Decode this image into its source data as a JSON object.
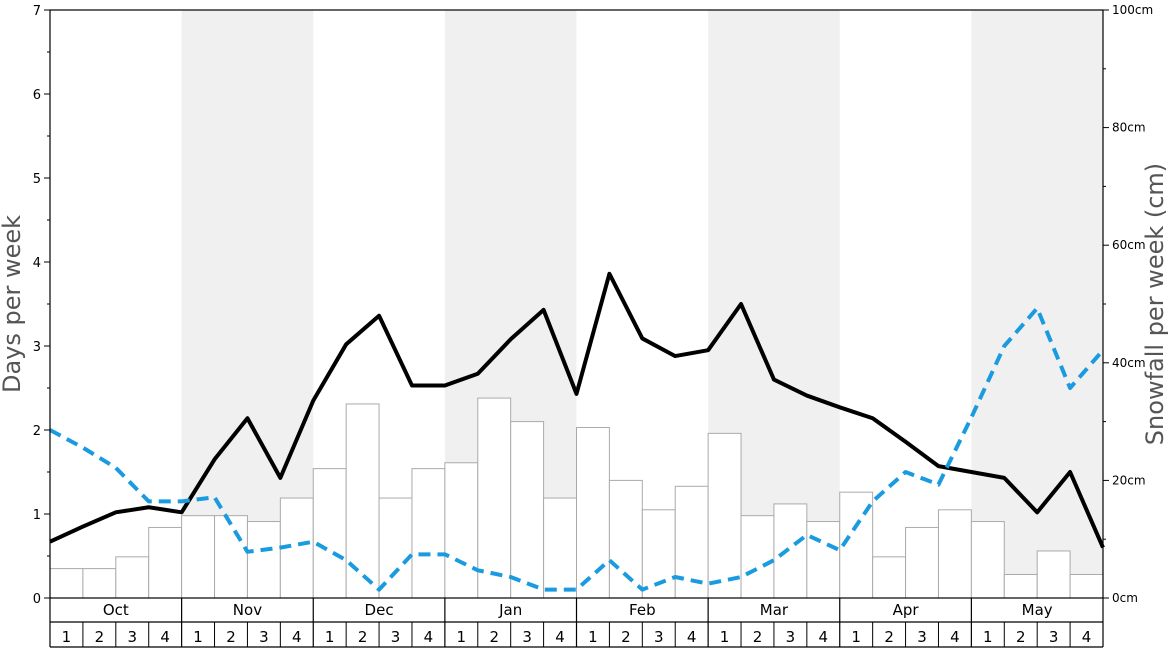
{
  "chart_data": {
    "type": "bar",
    "title": "",
    "ylabel_left": "Days per week",
    "ylabel_right": "Snowfall per week (cm)",
    "ylim_left": [
      0,
      7
    ],
    "ylim_right": [
      0,
      100
    ],
    "left_ticks": [
      "0",
      "1",
      "2",
      "3",
      "4",
      "5",
      "6",
      "7"
    ],
    "right_ticks": [
      "0cm",
      "20cm",
      "40cm",
      "60cm",
      "80cm",
      "100cm"
    ],
    "months": [
      "Oct",
      "Nov",
      "Dec",
      "Jan",
      "Feb",
      "Mar",
      "Apr",
      "May"
    ],
    "weeks": [
      "1",
      "2",
      "3",
      "4"
    ],
    "grid": false,
    "shaded_months": [
      "Nov",
      "Jan",
      "Mar",
      "May"
    ],
    "series": [
      {
        "kind": "bar",
        "axis": "right",
        "unit": "cm",
        "values": [
          5,
          5,
          7,
          12,
          14,
          14,
          13,
          17,
          22,
          33,
          17,
          22,
          23,
          34,
          30,
          17,
          29,
          20,
          15,
          19,
          28,
          14,
          16,
          13,
          18,
          7,
          12,
          15,
          13,
          4,
          8,
          4
        ]
      },
      {
        "kind": "line",
        "axis": "left",
        "style": "solid",
        "color": "#000000",
        "values": [
          0.67,
          0.85,
          1.02,
          1.08,
          1.02,
          1.65,
          2.14,
          1.43,
          2.35,
          3.02,
          3.36,
          2.53,
          2.53,
          2.67,
          3.08,
          3.43,
          2.43,
          3.86,
          3.09,
          2.88,
          2.95,
          3.5,
          2.6,
          2.41,
          2.27,
          2.14,
          1.86,
          1.57,
          1.5,
          1.43,
          1.02,
          1.5,
          0.6
        ]
      },
      {
        "kind": "line",
        "axis": "left",
        "style": "dashed",
        "color": "#1a9be0",
        "values": [
          2.0,
          1.79,
          1.55,
          1.15,
          1.15,
          1.2,
          0.55,
          0.6,
          0.67,
          0.45,
          0.1,
          0.52,
          0.52,
          0.33,
          0.25,
          0.1,
          0.1,
          0.45,
          0.1,
          0.25,
          0.17,
          0.25,
          0.45,
          0.75,
          0.57,
          1.15,
          1.5,
          1.35,
          2.15,
          3.0,
          3.45,
          2.5,
          2.95
        ]
      }
    ]
  }
}
